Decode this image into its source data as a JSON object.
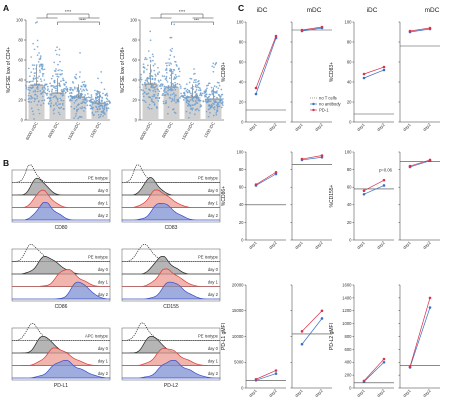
{
  "panels": {
    "A": "A",
    "B": "B",
    "C": "C"
  },
  "chart_data": [
    {
      "type": "bar",
      "panel": "A",
      "ylabel": "%CFSE low of CD4+",
      "categories": [
        "6000 mDC",
        "6000 iDC",
        "1500 mDC",
        "1500 iDC"
      ],
      "values": [
        35,
        27,
        23,
        17
      ],
      "ylim": [
        0,
        100
      ],
      "yticks": [
        "0",
        "20",
        "40",
        "60",
        "80",
        "100"
      ],
      "significance": [
        "****",
        "****"
      ],
      "bar_color": "#d0d0d0",
      "point_color": "#6f9fce"
    },
    {
      "type": "bar",
      "panel": "A",
      "ylabel": "%CFSE low of CD8+",
      "categories": [
        "6000 mDC",
        "6000 iDC",
        "1500 mDC",
        "1500 iDC"
      ],
      "values": [
        36,
        33,
        23,
        21
      ],
      "ylim": [
        0,
        100
      ],
      "yticks": [
        "0",
        "20",
        "40",
        "60",
        "80",
        "100"
      ],
      "significance": [
        "****",
        "***"
      ],
      "bar_color": "#d0d0d0",
      "point_color": "#6f9fce"
    },
    {
      "type": "area",
      "panel": "B",
      "histograms": [
        {
          "marker": "CD80",
          "isotype": "PE isotype",
          "days": [
            "day 0",
            "day 1",
            "day 2"
          ]
        },
        {
          "marker": "CD83",
          "isotype": "PE isotype",
          "days": [
            "day 0",
            "day 1",
            "day 2"
          ]
        },
        {
          "marker": "CD86",
          "isotype": "PE isotype",
          "days": [
            "day 0",
            "day 1",
            "day 2"
          ]
        },
        {
          "marker": "CD155",
          "isotype": "PE isotype",
          "days": [
            "day 0",
            "day 1",
            "day 2"
          ]
        },
        {
          "marker": "PD-L1",
          "isotype": "APC isotype",
          "days": [
            "day 0",
            "day 1",
            "day 2"
          ]
        },
        {
          "marker": "PD-L2",
          "isotype": "PE isotype",
          "days": [
            "day 0",
            "day 1",
            "day 2"
          ]
        }
      ],
      "colors": {
        "day0": "#a8a8a8",
        "day1": "#f0a8a0",
        "day2": "#8e9ed8",
        "line1": "#d83a3a",
        "line2": "#3a4cc8"
      }
    },
    {
      "type": "line",
      "panel": "C",
      "column_headers": [
        "iDC",
        "mDC",
        "iDC",
        "mDC"
      ],
      "x": [
        "day1",
        "day2"
      ],
      "legend": [
        "no T cells",
        "no antibody",
        "PD-1"
      ],
      "legend_colors": [
        "#444444",
        "#3a6fc8",
        "#d6334d"
      ],
      "pvalue": "p=0.06",
      "plots": [
        {
          "ylabel": "%CD80+",
          "yticks": [
            "0",
            "20",
            "40",
            "60",
            "80",
            "100"
          ],
          "ylim": [
            0,
            100
          ],
          "baseline": 12,
          "idc": {
            "no_antibody": [
              28,
              84
            ],
            "pd1": [
              34,
              86
            ]
          },
          "mdc": {
            "no_antibody": [
              91,
              94
            ],
            "pd1": [
              92,
              95
            ],
            "no_t_cells": 92
          }
        },
        {
          "ylabel": "%CD83+",
          "yticks": [
            "0",
            "20",
            "40",
            "60",
            "80",
            "100"
          ],
          "ylim": [
            0,
            100
          ],
          "baseline": 8,
          "idc": {
            "no_antibody": [
              44,
              52
            ],
            "pd1": [
              48,
              55
            ]
          },
          "mdc": {
            "no_antibody": [
              90,
              93
            ],
            "pd1": [
              91,
              94
            ],
            "no_t_cells": 76
          }
        },
        {
          "ylabel": "%CD86+",
          "yticks": [
            "0",
            "20",
            "40",
            "60",
            "80",
            "100"
          ],
          "ylim": [
            0,
            100
          ],
          "baseline": 40,
          "idc": {
            "no_antibody": [
              62,
              75
            ],
            "pd1": [
              63,
              77
            ]
          },
          "mdc": {
            "no_antibody": [
              91,
              94
            ],
            "pd1": [
              92,
              96
            ],
            "no_t_cells": 86
          }
        },
        {
          "ylabel": "%CD155+",
          "yticks": [
            "0",
            "20",
            "40",
            "60",
            "80",
            "100"
          ],
          "ylim": [
            0,
            100
          ],
          "baseline": 58,
          "idc": {
            "no_antibody": [
              52,
              62
            ],
            "pd1": [
              56,
              68
            ]
          },
          "mdc": {
            "no_antibody": [
              83,
              90
            ],
            "pd1": [
              84,
              91
            ],
            "no_t_cells": 89
          }
        },
        {
          "ylabel": "PD-L1 gMFI",
          "yticks": [
            "0",
            "5000",
            "10000",
            "15000",
            "20000"
          ],
          "ylim": [
            0,
            20000
          ],
          "baseline": 1500,
          "idc": {
            "no_antibody": [
              1500,
              2800
            ],
            "pd1": [
              1700,
              3400
            ]
          },
          "mdc": {
            "no_antibody": [
              8500,
              13500
            ],
            "pd1": [
              11000,
              15000
            ],
            "no_t_cells": 10500
          }
        },
        {
          "ylabel": "PD-L2 gMFI",
          "yticks": [
            "0",
            "200",
            "400",
            "600",
            "800",
            "1000",
            "1200",
            "1400",
            "1600"
          ],
          "ylim": [
            0,
            1600
          ],
          "baseline": 80,
          "idc": {
            "no_antibody": [
              100,
              400
            ],
            "pd1": [
              110,
              450
            ]
          },
          "mdc": {
            "no_antibody": [
              320,
              1250
            ],
            "pd1": [
              330,
              1400
            ],
            "no_t_cells": 350
          }
        }
      ]
    }
  ]
}
